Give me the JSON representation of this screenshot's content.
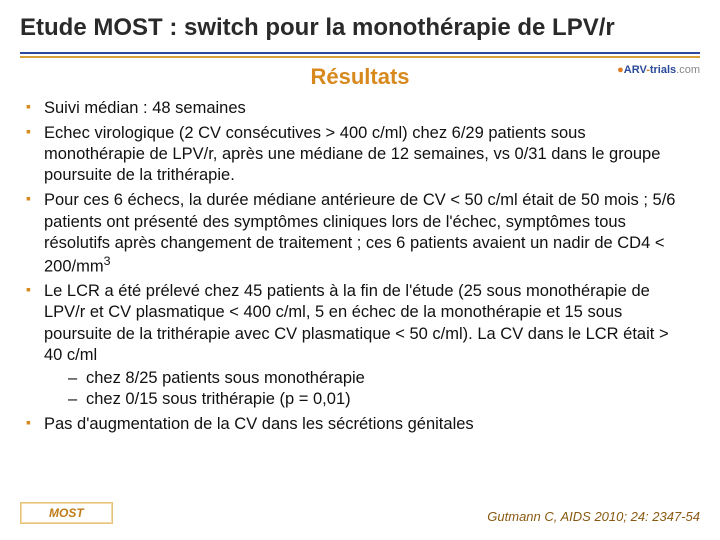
{
  "title": "Etude MOST : switch pour la monothérapie de LPV/r",
  "subtitle": "Résultats",
  "logo": {
    "prefix": "●",
    "part1": "ARV",
    "dash": "-",
    "part2": "trials",
    "suffix": ".com"
  },
  "bullets": {
    "b1": "Suivi médian : 48 semaines",
    "b2": "Echec virologique (2 CV consécutives > 400 c/ml) chez 6/29 patients sous monothérapie de LPV/r, après une médiane de 12 semaines, vs 0/31 dans le groupe poursuite de la trithérapie.",
    "b3": "Pour ces 6 échecs, la durée médiane antérieure de CV < 50 c/ml était de 50 mois ; 5/6 patients ont présenté des symptômes cliniques lors de l'échec, symptômes tous résolutifs après changement de traitement ; ces 6 patients avaient un nadir de CD4 < 200/mm",
    "b3_sup": "3",
    "b4": "Le LCR a été prélevé chez 45 patients à la fin de l'étude (25 sous monothérapie de LPV/r et CV plasmatique < 400 c/ml, 5 en échec de la monothérapie et 15 sous poursuite de la trithérapie avec CV plasmatique < 50 c/ml). La CV dans le LCR était > 40 c/ml",
    "b4_s1": "chez 8/25 patients sous monothérapie",
    "b4_s2": "chez 0/15 sous trithérapie (p = 0,01)",
    "b5": "Pas d'augmentation de la CV dans les sécrétions génitales"
  },
  "footer": {
    "tag": "MOST",
    "citation": "Gutmann C, AIDS 2010; 24: 2347-54"
  }
}
